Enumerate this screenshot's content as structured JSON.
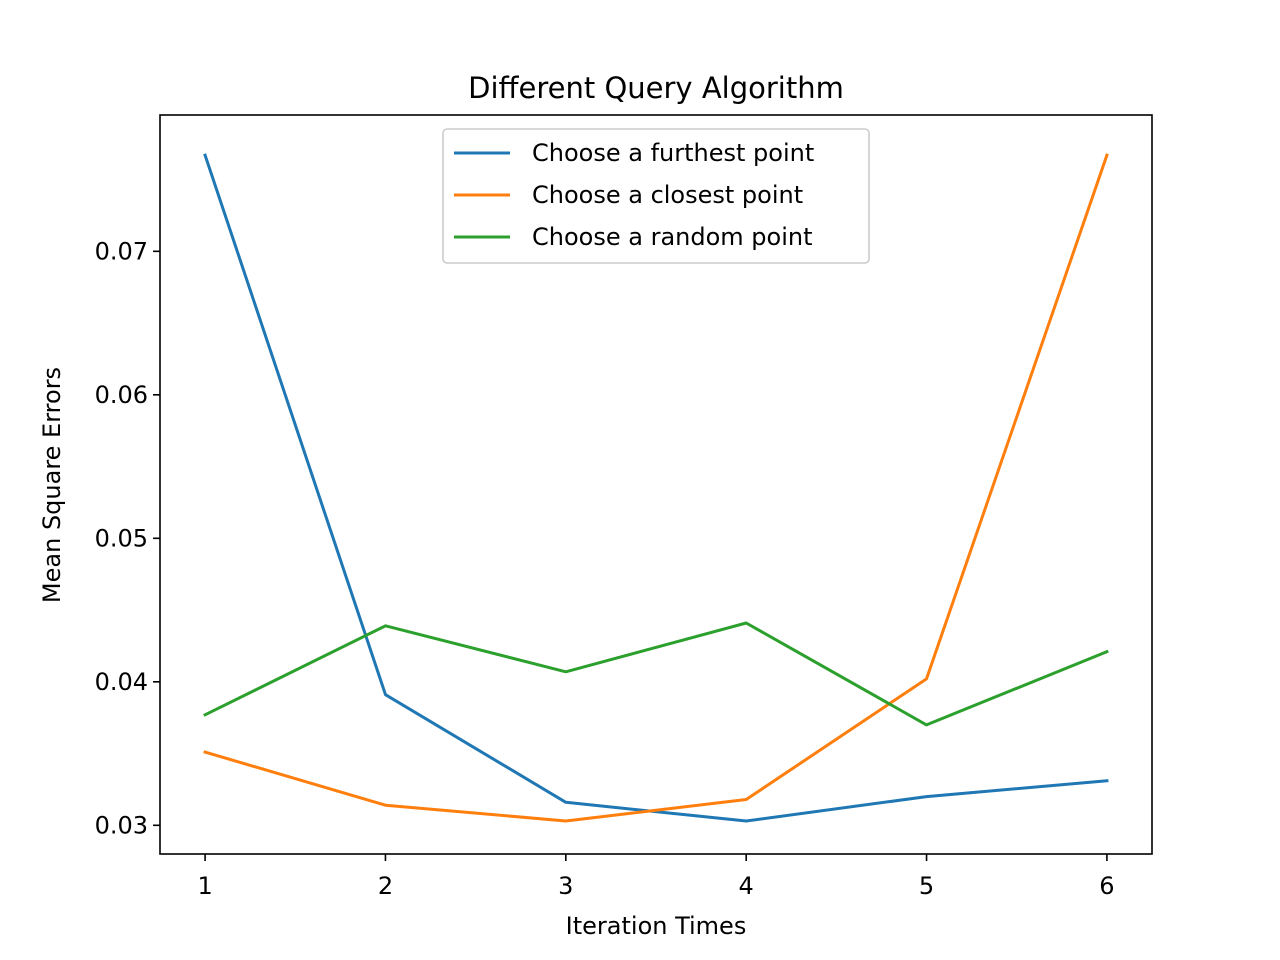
{
  "chart_data": {
    "type": "line",
    "title": "Different Query Algorithm",
    "xlabel": "Iteration Times",
    "ylabel": "Mean Square Errors",
    "x": [
      1,
      2,
      3,
      4,
      5,
      6
    ],
    "xticks": [
      "1",
      "2",
      "3",
      "4",
      "5",
      "6"
    ],
    "yticks": [
      "0.03",
      "0.04",
      "0.05",
      "0.06",
      "0.07"
    ],
    "ytick_values": [
      0.03,
      0.04,
      0.05,
      0.06,
      0.07
    ],
    "xlim": [
      0.75,
      6.25
    ],
    "ylim": [
      0.028,
      0.0795
    ],
    "grid": false,
    "legend_position": "top-center",
    "series": [
      {
        "name": "Choose a furthest point",
        "color": "#1f77b4",
        "values": [
          0.0767,
          0.0391,
          0.0316,
          0.0303,
          0.032,
          0.0331
        ]
      },
      {
        "name": "Choose a closest point",
        "color": "#ff7f0e",
        "values": [
          0.0351,
          0.0314,
          0.0303,
          0.0318,
          0.0402,
          0.0767
        ]
      },
      {
        "name": "Choose a random point",
        "color": "#2ca02c",
        "values": [
          0.0377,
          0.0439,
          0.0407,
          0.0441,
          0.037,
          0.0421
        ]
      }
    ]
  }
}
